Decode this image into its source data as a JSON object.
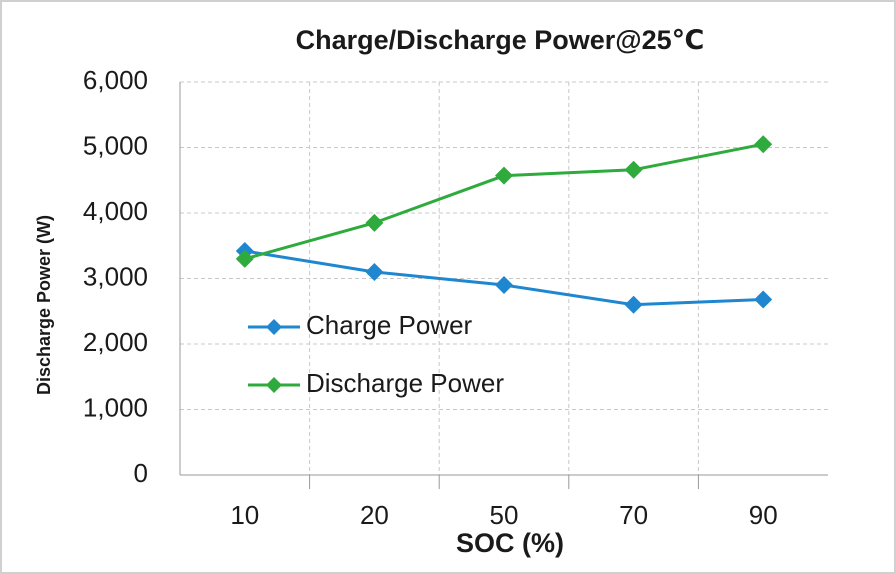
{
  "chart_data": {
    "type": "line",
    "title": "Charge/Discharge Power@25℃",
    "x_label": "SOC (%)",
    "y_label": "Discharge Power (W)",
    "categories": [
      "10",
      "20",
      "50",
      "70",
      "90"
    ],
    "series": [
      {
        "name": "Charge Power",
        "color": "#1f86d0",
        "values": [
          3420,
          3100,
          2900,
          2600,
          2680
        ]
      },
      {
        "name": "Discharge Power",
        "color": "#2eab3c",
        "values": [
          3300,
          3850,
          4570,
          4660,
          5050
        ]
      }
    ],
    "ylim": [
      0,
      6000
    ],
    "yticks": [
      0,
      {
        "value": 1000,
        "label": "1,000"
      },
      {
        "value": 2000,
        "label": "2,000"
      },
      {
        "value": 3000,
        "label": "3,000"
      },
      {
        "value": 4000,
        "label": "4,000"
      },
      {
        "value": 5000,
        "label": "5,000"
      },
      {
        "value": 6000,
        "label": "6,000"
      }
    ],
    "grid": true
  }
}
